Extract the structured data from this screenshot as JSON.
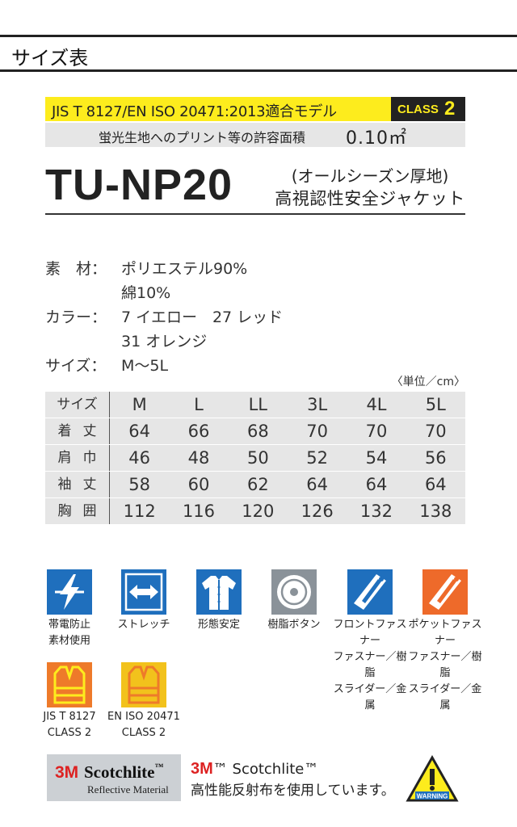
{
  "header": {
    "title": "サイズ表"
  },
  "standard": {
    "jis_text": "JIS T 8127/EN ISO 20471:2013適合モデル",
    "class_label": "CLASS",
    "class_num": "2",
    "print_label": "蛍光生地へのプリント等の許容面積",
    "print_value": "0.10㎡"
  },
  "product": {
    "model": "TU-NP20",
    "subtitle_line1": "(オールシーズン厚地)",
    "subtitle_line2": "高視認性安全ジャケット"
  },
  "specs": [
    {
      "label": "素　材：",
      "value": "ポリエステル90%"
    },
    {
      "label": "",
      "value": "綿10%"
    },
    {
      "label": "カラー：",
      "value": "7 イエロー　27 レッド"
    },
    {
      "label": "",
      "value": "31 オレンジ"
    },
    {
      "label": "サイズ：",
      "value": "M〜5L"
    }
  ],
  "unit_note": "〈単位／cm〉",
  "size_table": {
    "header_label": "サイズ",
    "sizes": [
      "M",
      "L",
      "LL",
      "3L",
      "4L",
      "5L"
    ],
    "rows": [
      {
        "label": "着丈",
        "values": [
          "64",
          "66",
          "68",
          "70",
          "70",
          "70"
        ]
      },
      {
        "label": "肩巾",
        "values": [
          "46",
          "48",
          "50",
          "52",
          "54",
          "56"
        ]
      },
      {
        "label": "袖丈",
        "values": [
          "58",
          "60",
          "62",
          "64",
          "64",
          "64"
        ]
      },
      {
        "label": "胸囲",
        "values": [
          "112",
          "116",
          "120",
          "126",
          "132",
          "138"
        ]
      }
    ]
  },
  "features": [
    {
      "icon": "lightning-icon",
      "color": "#1f6fbd",
      "line1": "帯電防止",
      "line2": "素材使用",
      "line3": ""
    },
    {
      "icon": "stretch-arrows-icon",
      "color": "#1f6fbd",
      "line1": "ストレッチ",
      "line2": "",
      "line3": ""
    },
    {
      "icon": "shirt-icon",
      "color": "#1f6fbd",
      "line1": "形態安定",
      "line2": "",
      "line3": ""
    },
    {
      "icon": "button-icon",
      "color": "#8a9299",
      "line1": "樹脂ボタン",
      "line2": "",
      "line3": ""
    },
    {
      "icon": "front-zipper-icon",
      "color": "#1f6fbd",
      "line1": "フロントファスナー",
      "line2": "ファスナー／樹脂",
      "line3": "スライダー／金属"
    },
    {
      "icon": "pocket-zipper-icon",
      "color": "#ee6a2a",
      "line1": "ポケットファスナー",
      "line2": "ファスナー／樹脂",
      "line3": "スライダー／金属"
    }
  ],
  "certifications": [
    {
      "icon": "safety-vest-orange-icon",
      "color": "#ee7a2a",
      "line1": "JIS T 8127",
      "line2": "CLASS 2"
    },
    {
      "icon": "safety-vest-yellow-icon",
      "color": "#f2c21c",
      "line1": "EN ISO 20471",
      "line2": "CLASS 2"
    }
  ],
  "scotchlite": {
    "brand_3m": "3M",
    "name": "Scotchlite",
    "tm_mark": "™",
    "reflective": "Reflective Material",
    "tm_line_3m": "3M",
    "tm_line_text": "™ Scotchlite™",
    "description": "高性能反射布を使用しています。",
    "warning_label": "WARNING"
  }
}
